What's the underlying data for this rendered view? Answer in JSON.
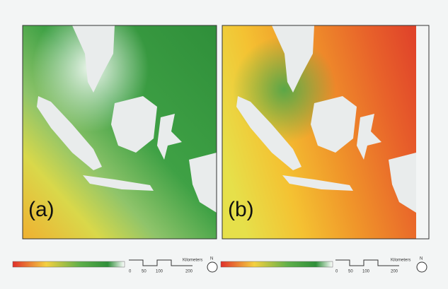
{
  "panels": [
    {
      "label": "(a)"
    },
    {
      "label": "(b)"
    }
  ],
  "scale_bar": {
    "ticks": [
      "0",
      "50",
      "100",
      "200"
    ],
    "unit": "Kilometers"
  },
  "compass": "N"
}
